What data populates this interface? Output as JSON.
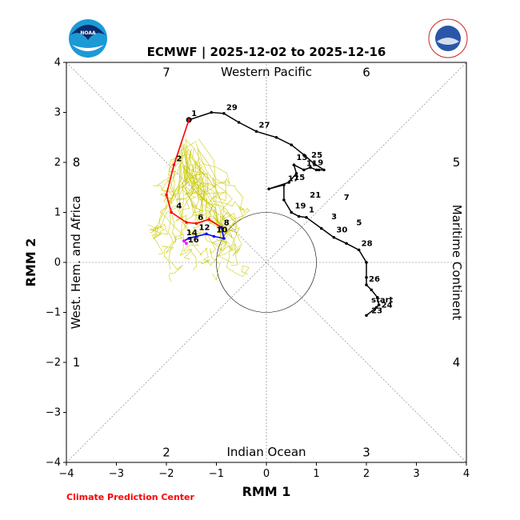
{
  "chart_data": {
    "type": "line",
    "title": "ECMWF | 2025-12-02 to 2025-12-16",
    "xlabel": "RMM 1",
    "ylabel": "RMM 2",
    "xlim": [
      -4,
      4
    ],
    "ylim": [
      -4,
      4
    ],
    "xticks": [
      -4,
      -3,
      -2,
      -1,
      0,
      1,
      2,
      3,
      4
    ],
    "yticks": [
      -4,
      -3,
      -2,
      -1,
      0,
      1,
      2,
      3,
      4
    ],
    "tick_labels": [
      "−4",
      "−3",
      "−2",
      "−1",
      "0",
      "1",
      "2",
      "3",
      "4"
    ],
    "credit": "Climate Prediction Center",
    "region_labels": {
      "top": "Western Pacific",
      "bottom": "Indian Ocean",
      "left": "West. Hem. and Africa",
      "right": "Maritime Continent"
    },
    "phases": [
      {
        "label": "1",
        "x": -3.8,
        "y": -2.0
      },
      {
        "label": "2",
        "x": -2.0,
        "y": -3.8
      },
      {
        "label": "3",
        "x": 2.0,
        "y": -3.8
      },
      {
        "label": "4",
        "x": 3.8,
        "y": -2.0
      },
      {
        "label": "5",
        "x": 3.8,
        "y": 2.0
      },
      {
        "label": "6",
        "x": 2.0,
        "y": 3.8
      },
      {
        "label": "7",
        "x": -2.0,
        "y": 3.8
      },
      {
        "label": "8",
        "x": -3.8,
        "y": 2.0
      }
    ],
    "observed": {
      "name": "observed",
      "color": "#000000",
      "points": [
        [
          2.0,
          -1.06
        ],
        [
          2.2,
          -0.9
        ],
        [
          2.25,
          -0.85
        ],
        [
          2.22,
          -0.7
        ],
        [
          2.1,
          -0.55
        ],
        [
          2.0,
          -0.45
        ],
        [
          2.0,
          -0.3
        ],
        [
          2.0,
          0.0
        ],
        [
          1.85,
          0.25
        ],
        [
          1.6,
          0.38
        ],
        [
          1.35,
          0.5
        ],
        [
          1.1,
          0.68
        ],
        [
          0.8,
          0.9
        ],
        [
          0.65,
          0.92
        ],
        [
          0.5,
          1.0
        ],
        [
          0.35,
          1.25
        ],
        [
          0.35,
          1.55
        ],
        [
          0.05,
          1.47
        ],
        [
          0.45,
          1.6
        ],
        [
          0.6,
          1.78
        ],
        [
          0.55,
          1.95
        ],
        [
          0.75,
          1.85
        ],
        [
          0.88,
          1.9
        ],
        [
          1.0,
          1.85
        ],
        [
          1.05,
          1.85
        ],
        [
          1.15,
          1.85
        ],
        [
          0.95,
          1.98
        ],
        [
          0.75,
          2.15
        ],
        [
          0.5,
          2.35
        ],
        [
          0.2,
          2.5
        ],
        [
          -0.2,
          2.62
        ],
        [
          -0.55,
          2.8
        ],
        [
          -0.85,
          2.98
        ],
        [
          -1.1,
          3.0
        ],
        [
          -1.55,
          2.85
        ]
      ],
      "labels": [
        {
          "text": "start",
          "x": 2.05,
          "y": -0.85
        },
        {
          "text": "23",
          "x": 2.05,
          "y": -1.06
        },
        {
          "text": "24",
          "x": 2.25,
          "y": -0.95
        },
        {
          "text": "26",
          "x": 2.0,
          "y": -0.43
        },
        {
          "text": "28",
          "x": 1.85,
          "y": 0.28
        },
        {
          "text": "30",
          "x": 1.35,
          "y": 0.55
        },
        {
          "text": "3",
          "x": 1.25,
          "y": 0.82
        },
        {
          "text": "5",
          "x": 1.75,
          "y": 0.7
        },
        {
          "text": "7",
          "x": 1.5,
          "y": 1.2
        },
        {
          "text": "1",
          "x": 0.8,
          "y": 0.95
        },
        {
          "text": "19",
          "x": 0.52,
          "y": 1.03
        },
        {
          "text": "21",
          "x": 0.82,
          "y": 1.25
        },
        {
          "text": "17",
          "x": 0.38,
          "y": 1.58
        },
        {
          "text": "15",
          "x": 0.5,
          "y": 1.6
        },
        {
          "text": "13",
          "x": 0.55,
          "y": 2.0
        },
        {
          "text": "11",
          "x": 0.75,
          "y": 1.88
        },
        {
          "text": "9",
          "x": 0.98,
          "y": 1.9
        },
        {
          "text": "25",
          "x": 0.85,
          "y": 2.05
        },
        {
          "text": "27",
          "x": -0.2,
          "y": 2.65
        },
        {
          "text": "29",
          "x": -0.85,
          "y": 3.0
        },
        {
          "text": "1",
          "x": -1.55,
          "y": 2.88
        }
      ]
    },
    "forecast_mean": {
      "name": "ensemble mean",
      "segments": [
        {
          "color": "#ff0000",
          "points": [
            [
              -1.55,
              2.85
            ],
            [
              -1.85,
              1.95
            ],
            [
              -2.0,
              1.35
            ],
            [
              -1.9,
              1.0
            ],
            [
              -1.6,
              0.8
            ],
            [
              -1.4,
              0.78
            ],
            [
              -1.15,
              0.86
            ],
            [
              -0.9,
              0.7
            ]
          ]
        },
        {
          "color": "#0000ff",
          "points": [
            [
              -0.9,
              0.7
            ],
            [
              -0.85,
              0.48
            ],
            [
              -1.05,
              0.52
            ],
            [
              -1.2,
              0.57
            ],
            [
              -1.4,
              0.52
            ],
            [
              -1.55,
              0.48
            ],
            [
              -1.65,
              0.43
            ]
          ]
        },
        {
          "color": "#ff00ff",
          "points": [
            [
              -1.65,
              0.43
            ],
            [
              -1.6,
              0.38
            ]
          ]
        }
      ],
      "labels": [
        {
          "text": "2",
          "x": -1.85,
          "y": 1.98
        },
        {
          "text": "4",
          "x": -1.85,
          "y": 1.03
        },
        {
          "text": "6",
          "x": -1.42,
          "y": 0.8
        },
        {
          "text": "8",
          "x": -0.9,
          "y": 0.7
        },
        {
          "text": "10",
          "x": -1.05,
          "y": 0.55
        },
        {
          "text": "12",
          "x": -1.4,
          "y": 0.6
        },
        {
          "text": "14",
          "x": -1.65,
          "y": 0.5
        },
        {
          "text": "16",
          "x": -1.62,
          "y": 0.35
        }
      ]
    },
    "ensemble_members": {
      "name": "ensemble members",
      "color": "#c8c800",
      "count": 40
    }
  }
}
